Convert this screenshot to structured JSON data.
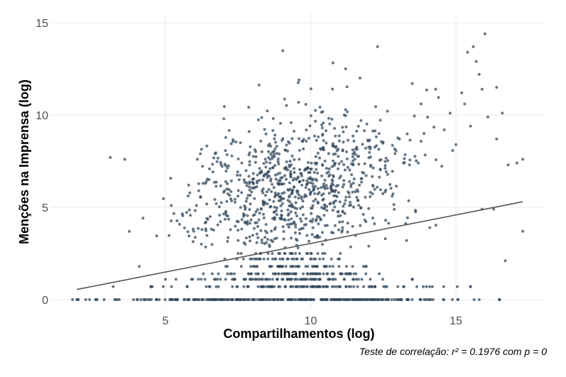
{
  "chart_data": {
    "type": "scatter",
    "title": "",
    "xlabel": "Compartilhamentos (log)",
    "ylabel": "Menções na Imprensa (log)",
    "caption": "Teste de correlação: r² =  0.1976 com p =  0",
    "xlim": [
      1.5,
      18
    ],
    "ylim": [
      -0.3,
      15.3
    ],
    "x_ticks": [
      5,
      10,
      15
    ],
    "x_tick_labels": [
      "5",
      "10",
      "15"
    ],
    "y_ticks": [
      0,
      5,
      10,
      15
    ],
    "y_tick_labels": [
      "0",
      "5",
      "10",
      "15"
    ],
    "grid": true,
    "point_color": "#34495e",
    "line_color": "#555555",
    "trend_line": {
      "x": [
        1.95,
        17.3
      ],
      "y": [
        0.55,
        5.3
      ]
    },
    "clusters": [
      {
        "x": [
          1.8,
          16.5
        ],
        "y": [
          0,
          0
        ],
        "n": 300
      },
      {
        "x": [
          4.5,
          15.5
        ],
        "y": [
          0.7,
          0.7
        ],
        "n": 110
      },
      {
        "x": [
          5.0,
          13.5
        ],
        "y": [
          1.1,
          1.1
        ],
        "n": 90
      },
      {
        "x": [
          5.8,
          13.0
        ],
        "y": [
          1.4,
          1.4
        ],
        "n": 70
      },
      {
        "x": [
          6.5,
          12.5
        ],
        "y": [
          1.8,
          1.8
        ],
        "n": 50
      },
      {
        "x": [
          7.0,
          12.0
        ],
        "y": [
          2.2,
          2.2
        ],
        "n": 35
      },
      {
        "x": [
          7.5,
          11.5
        ],
        "y": [
          2.5,
          2.5
        ],
        "n": 25
      },
      {
        "cx": 9.5,
        "cy": 6.2,
        "sx": 1.9,
        "sy": 1.9,
        "n": 900
      }
    ],
    "points": [
      [
        3.1,
        7.7
      ],
      [
        3.6,
        7.6
      ],
      [
        2.6,
        0.0
      ],
      [
        2.0,
        0.0
      ],
      [
        16.0,
        14.4
      ],
      [
        15.6,
        13.7
      ],
      [
        15.4,
        13.4
      ],
      [
        12.3,
        13.7
      ],
      [
        15.7,
        12.9
      ],
      [
        15.8,
        12.2
      ],
      [
        16.4,
        11.5
      ],
      [
        16.6,
        10.1
      ],
      [
        15.9,
        11.4
      ],
      [
        17.3,
        7.6
      ],
      [
        16.8,
        7.3
      ],
      [
        17.1,
        7.4
      ],
      [
        16.4,
        8.7
      ],
      [
        15.2,
        11.2
      ],
      [
        15.0,
        8.4
      ],
      [
        17.3,
        3.7
      ],
      [
        16.7,
        2.1
      ],
      [
        4.1,
        1.8
      ],
      [
        3.2,
        0.7
      ],
      [
        5.2,
        5.1
      ],
      [
        14.3,
        11.4
      ],
      [
        13.5,
        11.7
      ],
      [
        11.7,
        12.0
      ],
      [
        11.2,
        12.5
      ],
      [
        9.6,
        11.9
      ],
      [
        16.3,
        4.9
      ],
      [
        15.9,
        4.9
      ],
      [
        14.1,
        3.9
      ],
      [
        13.3,
        3.2
      ],
      [
        12.0,
        2.9
      ],
      [
        6.2,
        7.9
      ],
      [
        6.1,
        7.6
      ],
      [
        6.5,
        6.5
      ],
      [
        5.8,
        6.2
      ],
      [
        15.3,
        10.6
      ],
      [
        14.8,
        10.1
      ],
      [
        13.8,
        10.6
      ],
      [
        16.1,
        9.9
      ],
      [
        15.5,
        9.4
      ],
      [
        14.6,
        9.2
      ],
      [
        13.9,
        9.0
      ]
    ]
  }
}
